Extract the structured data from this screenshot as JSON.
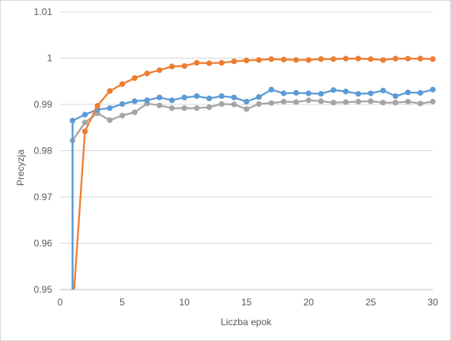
{
  "chart_data": {
    "type": "line",
    "xlabel": "Liczba epok",
    "ylabel": "Precyzja",
    "xlim": [
      0,
      30
    ],
    "ylim": [
      0.95,
      1.01
    ],
    "x_ticks": [
      "0",
      "5",
      "10",
      "15",
      "20",
      "25",
      "30"
    ],
    "y_ticks": [
      "0.95",
      "0.96",
      "0.97",
      "0.98",
      "0.99",
      "1",
      "1.01"
    ],
    "grid": "horizontal",
    "legend": "none",
    "x": [
      1,
      2,
      3,
      4,
      5,
      6,
      7,
      8,
      9,
      10,
      11,
      12,
      13,
      14,
      15,
      16,
      17,
      18,
      19,
      20,
      21,
      22,
      23,
      24,
      25,
      26,
      27,
      28,
      29,
      30
    ],
    "series": [
      {
        "color": "#5b9bd5",
        "values": [
          0.9865,
          0.9878,
          0.9889,
          0.9892,
          0.9901,
          0.9907,
          0.9909,
          0.9915,
          0.9909,
          0.9915,
          0.9918,
          0.9913,
          0.9918,
          0.9915,
          0.9906,
          0.9916,
          0.9932,
          0.9924,
          0.9925,
          0.9924,
          0.9923,
          0.9931,
          0.9928,
          0.9923,
          0.9924,
          0.993,
          0.9918,
          0.9926,
          0.9925,
          0.9932
        ],
        "start_value": 0.948
      },
      {
        "color": "#ed7d31",
        "values": [
          0.945,
          0.9842,
          0.9897,
          0.9929,
          0.9944,
          0.9957,
          0.9967,
          0.9974,
          0.9982,
          0.9983,
          0.999,
          0.9989,
          0.999,
          0.9993,
          0.9995,
          0.9996,
          0.9998,
          0.9997,
          0.9996,
          0.9996,
          0.9998,
          0.9998,
          0.9999,
          0.9999,
          0.9998,
          0.9996,
          0.9999,
          0.9999,
          0.9999,
          0.9998
        ]
      },
      {
        "color": "#a5a5a5",
        "values": [
          0.9822,
          0.9861,
          0.9881,
          0.9866,
          0.9876,
          0.9883,
          0.9902,
          0.9898,
          0.9892,
          0.9892,
          0.9892,
          0.9894,
          0.9901,
          0.99,
          0.989,
          0.9901,
          0.9903,
          0.9906,
          0.9905,
          0.9909,
          0.9907,
          0.9904,
          0.9905,
          0.9906,
          0.9907,
          0.9904,
          0.9904,
          0.9906,
          0.9902,
          0.9906
        ],
        "start_value": 0.948
      }
    ]
  }
}
